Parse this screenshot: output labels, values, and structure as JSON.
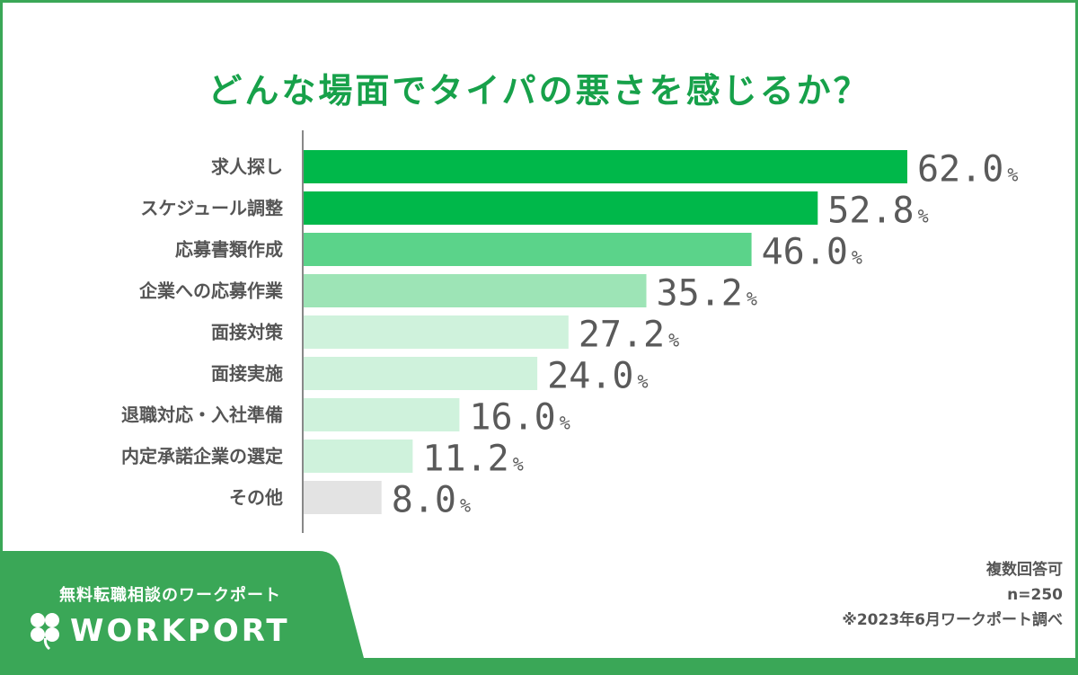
{
  "title": "どんな場面でタイパの悪さを感じるか？",
  "chart_data": {
    "type": "bar",
    "orientation": "horizontal",
    "title": "どんな場面でタイパの悪さを感じるか？",
    "categories": [
      "求人探し",
      "スケジュール調整",
      "応募書類作成",
      "企業への応募作業",
      "面接対策",
      "面接実施",
      "退職対応・入社準備",
      "内定承諾企業の選定",
      "その他"
    ],
    "values": [
      62.0,
      52.8,
      46.0,
      35.2,
      27.2,
      24.0,
      16.0,
      11.2,
      8.0
    ],
    "value_labels": [
      "62.0",
      "52.8",
      "46.0",
      "35.2",
      "27.2",
      "24.0",
      "16.0",
      "11.2",
      "8.0"
    ],
    "unit": "%",
    "bar_colors": [
      "#00b84a",
      "#00b84a",
      "#5bd38a",
      "#9de4b6",
      "#cff2dc",
      "#cff2dc",
      "#cff2dc",
      "#cff2dc",
      "#e3e3e3"
    ],
    "xlim": [
      0,
      62
    ],
    "grid": false
  },
  "notes": {
    "multiple": "複数回答可",
    "n": "n=250",
    "source": "※2023年6月ワークポート調べ"
  },
  "brand": {
    "tagline": "無料転職相談のワークポート",
    "logo_text": "WORKPORT",
    "color": "#3aa757"
  }
}
